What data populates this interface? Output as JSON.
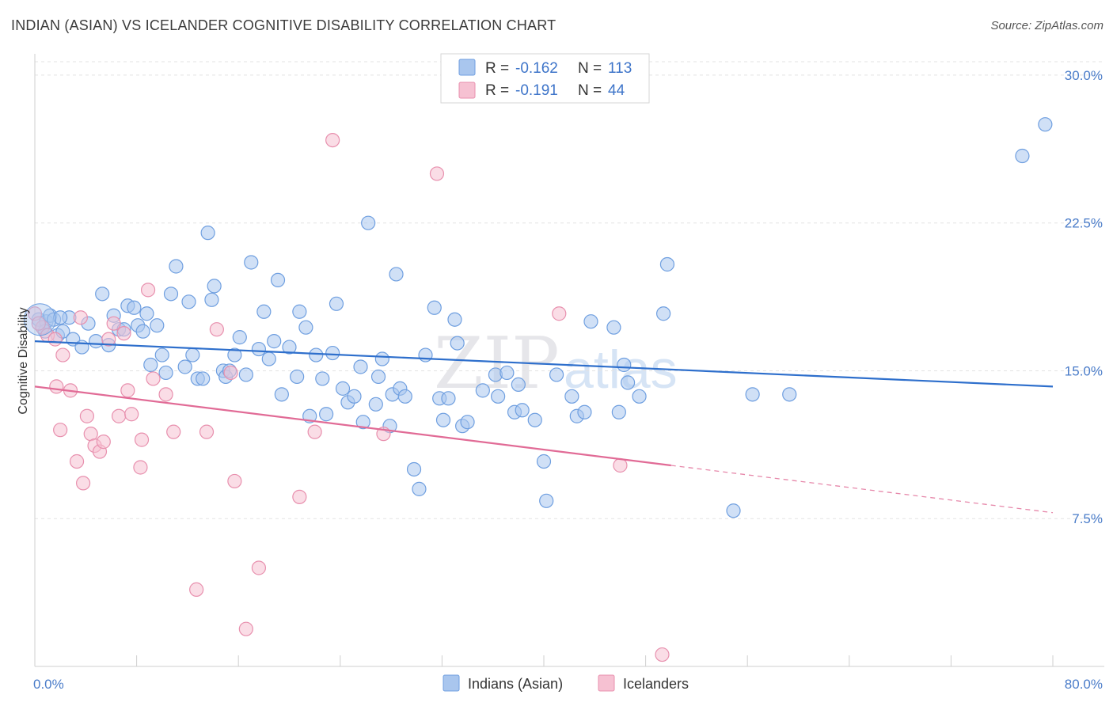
{
  "title": "INDIAN (ASIAN) VS ICELANDER COGNITIVE DISABILITY CORRELATION CHART",
  "source": "Source: ZipAtlas.com",
  "watermark": {
    "zip": "ZIP",
    "atlas": "atlas"
  },
  "legend": {
    "r_label": "R =",
    "n_label": "N =",
    "rows": [
      {
        "r": "-0.162",
        "n": "113",
        "color": "#a9c6ee",
        "stroke": "#6f9fe0"
      },
      {
        "r": "-0.191",
        "n": "44",
        "color": "#f6c1d2",
        "stroke": "#e890ae"
      }
    ]
  },
  "bottom_legend": [
    "Indians (Asian)",
    "Icelanders"
  ],
  "chart_data": {
    "type": "scatter",
    "title": "INDIAN (ASIAN) VS ICELANDER COGNITIVE DISABILITY CORRELATION CHART",
    "xlabel": "",
    "ylabel": "Cognitive Disability",
    "xlim": [
      0,
      80
    ],
    "ylim": [
      0,
      30.8
    ],
    "x_tick_labels": [
      "0.0%",
      "80.0%"
    ],
    "y_ticks": [
      7.5,
      15.0,
      22.5,
      30.0
    ],
    "y_tick_labels": [
      "7.5%",
      "15.0%",
      "22.5%",
      "30.0%"
    ],
    "grid": true,
    "series": [
      {
        "name": "Indians (Asian)",
        "color": "#6f9fe0",
        "fill": "#a9c6ee",
        "trend": {
          "x": [
            0,
            80
          ],
          "y": [
            16.5,
            14.2
          ],
          "color": "#2e6fcc"
        },
        "points": [
          [
            0.3,
            17.6
          ],
          [
            0.6,
            17.2
          ],
          [
            0.9,
            17.5
          ],
          [
            1.2,
            17.8
          ],
          [
            1.5,
            17.6
          ],
          [
            1.8,
            16.8
          ],
          [
            2.2,
            17.0
          ],
          [
            2.7,
            17.7
          ],
          [
            3.0,
            16.6
          ],
          [
            3.7,
            16.2
          ],
          [
            4.2,
            17.4
          ],
          [
            4.8,
            16.5
          ],
          [
            5.3,
            18.9
          ],
          [
            5.8,
            16.3
          ],
          [
            6.2,
            17.8
          ],
          [
            6.6,
            17.1
          ],
          [
            7.0,
            17.1
          ],
          [
            7.3,
            18.3
          ],
          [
            7.8,
            18.2
          ],
          [
            8.1,
            17.3
          ],
          [
            8.5,
            17.0
          ],
          [
            8.8,
            17.9
          ],
          [
            9.1,
            15.3
          ],
          [
            9.6,
            17.3
          ],
          [
            10.0,
            15.8
          ],
          [
            10.3,
            14.9
          ],
          [
            10.7,
            18.9
          ],
          [
            11.1,
            20.3
          ],
          [
            11.8,
            15.2
          ],
          [
            12.1,
            18.5
          ],
          [
            12.4,
            15.8
          ],
          [
            12.8,
            14.6
          ],
          [
            13.2,
            14.6
          ],
          [
            13.6,
            22.0
          ],
          [
            13.9,
            18.6
          ],
          [
            14.1,
            19.3
          ],
          [
            14.8,
            15.0
          ],
          [
            15.0,
            14.7
          ],
          [
            15.3,
            15.0
          ],
          [
            15.7,
            15.8
          ],
          [
            16.1,
            16.7
          ],
          [
            16.6,
            14.8
          ],
          [
            17.0,
            20.5
          ],
          [
            17.6,
            16.1
          ],
          [
            18.0,
            18.0
          ],
          [
            18.4,
            15.6
          ],
          [
            18.8,
            16.5
          ],
          [
            19.1,
            19.6
          ],
          [
            19.4,
            13.8
          ],
          [
            20.0,
            16.2
          ],
          [
            20.6,
            14.7
          ],
          [
            20.8,
            18.0
          ],
          [
            21.3,
            17.2
          ],
          [
            21.6,
            12.7
          ],
          [
            22.1,
            15.8
          ],
          [
            22.6,
            14.6
          ],
          [
            22.9,
            12.8
          ],
          [
            23.4,
            15.9
          ],
          [
            23.7,
            18.4
          ],
          [
            24.2,
            14.1
          ],
          [
            24.6,
            13.4
          ],
          [
            25.1,
            13.7
          ],
          [
            25.6,
            15.2
          ],
          [
            25.8,
            12.4
          ],
          [
            26.2,
            22.5
          ],
          [
            26.8,
            13.3
          ],
          [
            27.0,
            14.7
          ],
          [
            27.3,
            15.6
          ],
          [
            27.9,
            12.2
          ],
          [
            28.1,
            13.8
          ],
          [
            28.4,
            19.9
          ],
          [
            28.7,
            14.1
          ],
          [
            29.1,
            13.7
          ],
          [
            29.8,
            10.0
          ],
          [
            30.2,
            9.0
          ],
          [
            30.7,
            15.8
          ],
          [
            31.4,
            18.2
          ],
          [
            31.8,
            13.6
          ],
          [
            32.1,
            12.5
          ],
          [
            32.5,
            13.6
          ],
          [
            33.0,
            17.6
          ],
          [
            33.2,
            16.4
          ],
          [
            33.6,
            12.2
          ],
          [
            34.0,
            12.4
          ],
          [
            35.2,
            14.0
          ],
          [
            36.2,
            14.8
          ],
          [
            36.4,
            13.7
          ],
          [
            37.1,
            14.9
          ],
          [
            37.7,
            12.9
          ],
          [
            38.0,
            14.3
          ],
          [
            38.3,
            13.0
          ],
          [
            39.3,
            12.5
          ],
          [
            40.0,
            10.4
          ],
          [
            40.2,
            8.4
          ],
          [
            41.0,
            14.8
          ],
          [
            42.2,
            13.7
          ],
          [
            42.6,
            12.7
          ],
          [
            43.2,
            12.9
          ],
          [
            43.7,
            17.5
          ],
          [
            45.5,
            17.2
          ],
          [
            45.9,
            12.9
          ],
          [
            46.3,
            15.3
          ],
          [
            46.6,
            14.4
          ],
          [
            47.5,
            13.7
          ],
          [
            49.4,
            17.9
          ],
          [
            49.7,
            20.4
          ],
          [
            54.9,
            7.9
          ],
          [
            56.4,
            13.8
          ],
          [
            59.3,
            13.8
          ],
          [
            77.6,
            25.9
          ],
          [
            79.4,
            27.5
          ],
          [
            0.8,
            17.0
          ],
          [
            2.0,
            17.7
          ]
        ]
      },
      {
        "name": "Icelanders",
        "color": "#e890ae",
        "fill": "#f6c1d2",
        "trend": {
          "x": [
            0,
            50
          ],
          "y": [
            14.2,
            10.2
          ],
          "color": "#e16b96",
          "dashed_to": {
            "x": 80,
            "y": 7.8
          }
        },
        "points": [
          [
            0.0,
            17.9
          ],
          [
            0.6,
            17.2
          ],
          [
            1.0,
            16.8
          ],
          [
            1.6,
            16.6
          ],
          [
            1.7,
            14.2
          ],
          [
            2.0,
            12.0
          ],
          [
            2.2,
            15.8
          ],
          [
            2.8,
            14.0
          ],
          [
            3.3,
            10.4
          ],
          [
            3.6,
            17.7
          ],
          [
            3.8,
            9.3
          ],
          [
            4.1,
            12.7
          ],
          [
            4.4,
            11.8
          ],
          [
            4.7,
            11.2
          ],
          [
            5.1,
            10.9
          ],
          [
            5.4,
            11.4
          ],
          [
            5.8,
            16.6
          ],
          [
            6.2,
            17.4
          ],
          [
            6.6,
            12.7
          ],
          [
            7.0,
            16.9
          ],
          [
            7.3,
            14.0
          ],
          [
            7.6,
            12.8
          ],
          [
            8.3,
            10.1
          ],
          [
            8.4,
            11.5
          ],
          [
            8.9,
            19.1
          ],
          [
            9.3,
            14.6
          ],
          [
            10.3,
            13.8
          ],
          [
            10.9,
            11.9
          ],
          [
            12.7,
            3.9
          ],
          [
            13.5,
            11.9
          ],
          [
            14.3,
            17.1
          ],
          [
            15.4,
            14.9
          ],
          [
            15.7,
            9.4
          ],
          [
            16.6,
            1.9
          ],
          [
            17.6,
            5.0
          ],
          [
            20.8,
            8.6
          ],
          [
            22.0,
            11.9
          ],
          [
            23.4,
            26.7
          ],
          [
            27.4,
            11.8
          ],
          [
            31.6,
            25.0
          ],
          [
            41.2,
            17.9
          ],
          [
            46.0,
            10.2
          ],
          [
            49.3,
            0.6
          ],
          [
            0.3,
            17.4
          ]
        ]
      }
    ],
    "legend_position": "top-center"
  }
}
